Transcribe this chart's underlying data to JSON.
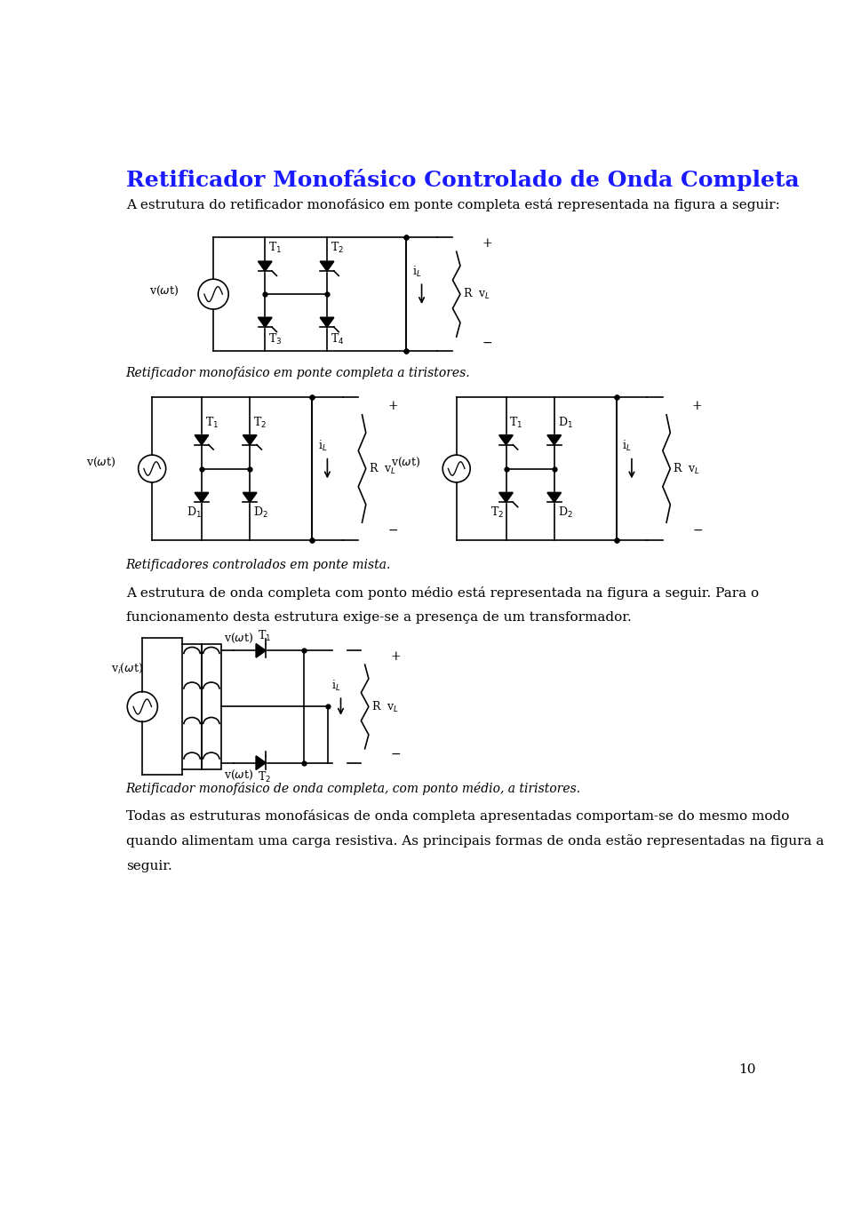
{
  "title": "Retificador Monofásico Controlado de Onda Completa",
  "title_color": "#1a1aff",
  "title_fontsize": 18,
  "body_color": "#000000",
  "background_color": "#ffffff",
  "para1": "A estrutura do retificador monofásico em ponte completa está representada na figura a seguir:",
  "caption1": "Retificador monofásico em ponte completa a tiristores.",
  "caption2": "Retificadores controlados em ponte mista.",
  "para2_line1": "A estrutura de onda completa com ponto médio está representada na figura a seguir. Para o",
  "para2_line2": "funcionamento desta estrutura exige-se a presença de um transformador.",
  "caption3": "Retificador monofásico de onda completa, com ponto médio, a tiristores.",
  "para3_line1": "Todas as estruturas monofásicas de onda completa apresentadas comportam-se do mesmo modo",
  "para3_line2": "quando alimentam uma carga resistiva. As principais formas de onda estão representadas na figura a",
  "para3_line3": "seguir.",
  "page_number": "10"
}
